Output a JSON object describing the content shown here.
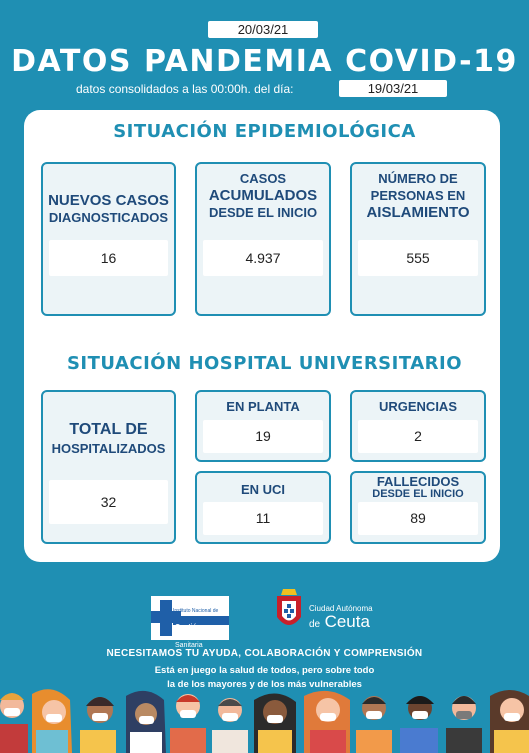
{
  "header": {
    "date": "20/03/21",
    "title": "DATOS PANDEMIA COVID-19",
    "subtitle": "datos consolidados a las 00:00h. del día:",
    "consolidated_date": "19/03/21"
  },
  "epidemiological": {
    "section_title": "SITUACIÓN EPIDEMIOLÓGICA",
    "new_cases": {
      "line1": "NUEVOS CASOS",
      "line2": "DIAGNOSTICADOS",
      "value": "16"
    },
    "accumulated": {
      "line1": "CASOS",
      "line2": "ACUMULADOS",
      "line3": "DESDE EL INICIO",
      "value": "4.937"
    },
    "isolation": {
      "line1": "NÚMERO DE",
      "line2": "PERSONAS EN",
      "line3": "AISLAMIENTO",
      "value": "555"
    }
  },
  "hospital": {
    "section_title": "SITUACIÓN HOSPITAL UNIVERSITARIO",
    "total": {
      "line1": "TOTAL DE",
      "line2": "HOSPITALIZADOS",
      "value": "32"
    },
    "ward": {
      "label": "EN PLANTA",
      "value": "19"
    },
    "emergency": {
      "label": "URGENCIAS",
      "value": "2"
    },
    "icu": {
      "label": "EN UCI",
      "value": "11"
    },
    "deceased": {
      "line1": "FALLECIDOS",
      "line2": "DESDE EL INICIO",
      "value": "89"
    }
  },
  "logos": {
    "ingesa_line1": "Instituto Nacional de",
    "ingesa_line2a": "Gestión",
    "ingesa_line2b": "Sanitaria",
    "ceuta_line1": "Ciudad Autónoma",
    "ceuta_line2a": "de",
    "ceuta_line2b": "Ceuta"
  },
  "footer": {
    "line1": "NECESITAMOS TU AYUDA, COLABORACIÓN  Y COMPRENSIÓN",
    "line2": "Está en juego la salud de todos, pero sobre todo",
    "line3": "la de los mayores y de los más vulnerables"
  },
  "colors": {
    "background": "#1f8fb3",
    "accent_text": "#1f4a7a",
    "panel": "#ffffff"
  }
}
